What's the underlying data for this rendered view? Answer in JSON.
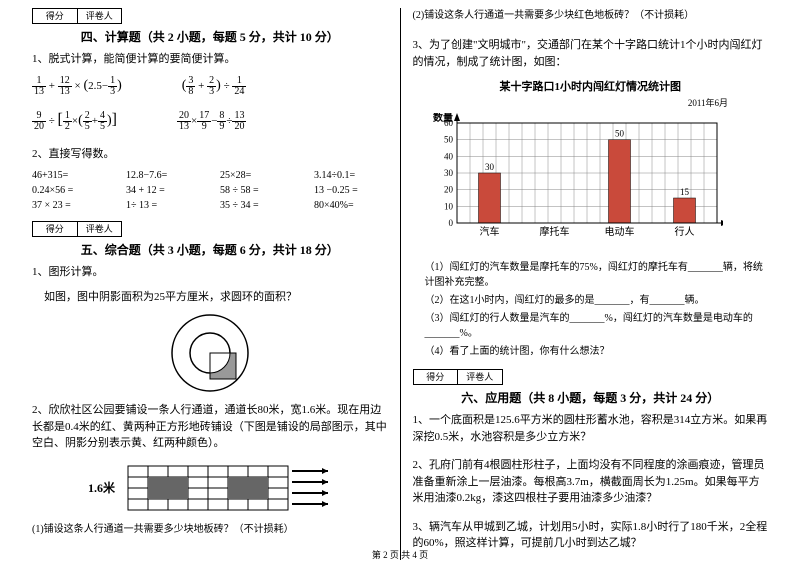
{
  "left": {
    "scoreLabels": [
      "得分",
      "评卷人"
    ],
    "section4": {
      "title": "四、计算题（共 2 小题，每题 5 分，共计 10 分）",
      "q1": "1、脱式计算，能简便计算的要简便计算。",
      "q2": "2、直接写得数。",
      "calcRows": [
        [
          "46+315=",
          "12.8−7.6=",
          "25×28=",
          "3.14÷0.1="
        ],
        [
          "0.24×56 =",
          "34 + 12 =",
          "58 ÷ 58 =",
          "13 −0.25 ="
        ],
        [
          "37 × 23 =",
          "1÷ 13 =",
          "35 ÷ 34 =",
          "80×40%="
        ]
      ]
    },
    "section5": {
      "title": "五、综合题（共 3 小题，每题 6 分，共计 18 分）",
      "q1a": "1、图形计算。",
      "q1b": "如图，图中阴影面积为25平方厘米，求圆环的面积？",
      "q2": "2、欣欣社区公园要铺设一条人行通道，通道长80米，宽1.6米。现在用边长都是0.4米的红、黄两种正方形地砖铺设（下图是铺设的局部图示，其中空白、阴影分别表示黄、红两种颜色）。",
      "walkwayLabel": "1.6米",
      "q2sub": "(1)铺设这条人行通道一共需要多少块地板砖？（不计损耗）"
    }
  },
  "right": {
    "q2sub2": "(2)铺设这条人行通道一共需要多少块红色地板砖？（不计损耗）",
    "q3": "3、为了创建\"文明城市\"，交通部门在某个十字路口统计1个小时内闯红灯的情况，制成了统计图，如图：",
    "chart": {
      "title": "某十字路口1小时内闯红灯情况统计图",
      "date": "2011年6月",
      "yLabel": "数量",
      "yTicks": [
        60,
        50,
        40,
        30,
        20,
        10,
        0
      ],
      "categories": [
        "汽车",
        "摩托车",
        "电动车",
        "行人"
      ],
      "values": [
        30,
        null,
        50,
        15
      ],
      "barColors": [
        "#c94a3b",
        "#c94a3b",
        "#c94a3b",
        "#c94a3b"
      ],
      "background": "#ffffff",
      "grid": "#888888",
      "barWidth": 22,
      "gap": 40,
      "yMax": 60,
      "plotHeight": 100,
      "plotWidth": 260
    },
    "q3subs": [
      "（1）闯红灯的汽车数量是摩托车的75%，闯红灯的摩托车有_______辆，将统计图补充完整。",
      "（2）在这1小时内，闯红灯的最多的是_______，有_______辆。",
      "（3）闯红灯的行人数量是汽车的_______%，闯红灯的汽车数量是电动车的_______%。",
      "（4）看了上面的统计图，你有什么想法？"
    ],
    "scoreLabels": [
      "得分",
      "评卷人"
    ],
    "section6": {
      "title": "六、应用题（共 8 小题，每题 3 分，共计 24 分）",
      "q1": "1、一个底面积是125.6平方米的圆柱形蓄水池，容积是314立方米。如果再深挖0.5米，水池容积是多少立方米？",
      "q2": "2、孔府门前有4根圆柱形柱子，上面均没有不同程度的涂画痕迹，管理员准备重新涂上一层油漆。每根高3.7m，横截面周长为1.25m。如果每平方米用油漆0.2kg，漆这四根柱子要用油漆多少油漆？",
      "q3": "3、辆汽车从甲城到乙城，计划用5小时，实际1.8小时行了180千米，2全程的60%，照这样计算，可提前几小时到达乙城？"
    }
  },
  "footer": "第 2 页 共 4 页"
}
